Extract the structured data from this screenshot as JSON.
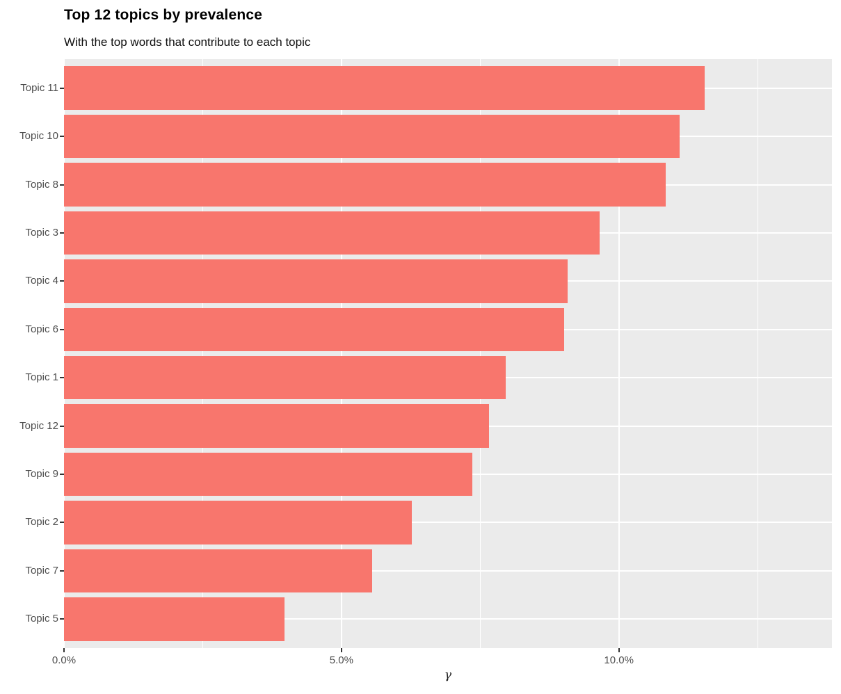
{
  "page": {
    "background": "#FFFFFF"
  },
  "chart_data": {
    "type": "bar",
    "orientation": "horizontal",
    "title": "Top 12 topics by prevalence",
    "subtitle": "With the top words that contribute to each topic",
    "xlabel": "γ",
    "ylabel": "",
    "categories": [
      "Topic 11",
      "Topic 10",
      "Topic 8",
      "Topic 3",
      "Topic 4",
      "Topic 6",
      "Topic 1",
      "Topic 12",
      "Topic 9",
      "Topic 2",
      "Topic 7",
      "Topic 5"
    ],
    "values": [
      11.54,
      11.1,
      10.85,
      9.65,
      9.07,
      9.01,
      7.96,
      7.66,
      7.36,
      6.27,
      5.55,
      3.97
    ],
    "value_unit": "percent",
    "xlim": [
      0,
      13.84
    ],
    "x_major_ticks": [
      0,
      5,
      10
    ],
    "x_tick_labels": [
      "0.0%",
      "5.0%",
      "10.0%"
    ],
    "x_minor_ticks": [
      2.5,
      7.5,
      12.5
    ],
    "grid": "on",
    "legend": "none",
    "colors": {
      "bar": "#F8766D",
      "panel_bg": "#EBEBEB",
      "grid": "#FFFFFF",
      "axis_text": "#4D4D4D",
      "tick": "#333333",
      "title": "#000000"
    }
  }
}
